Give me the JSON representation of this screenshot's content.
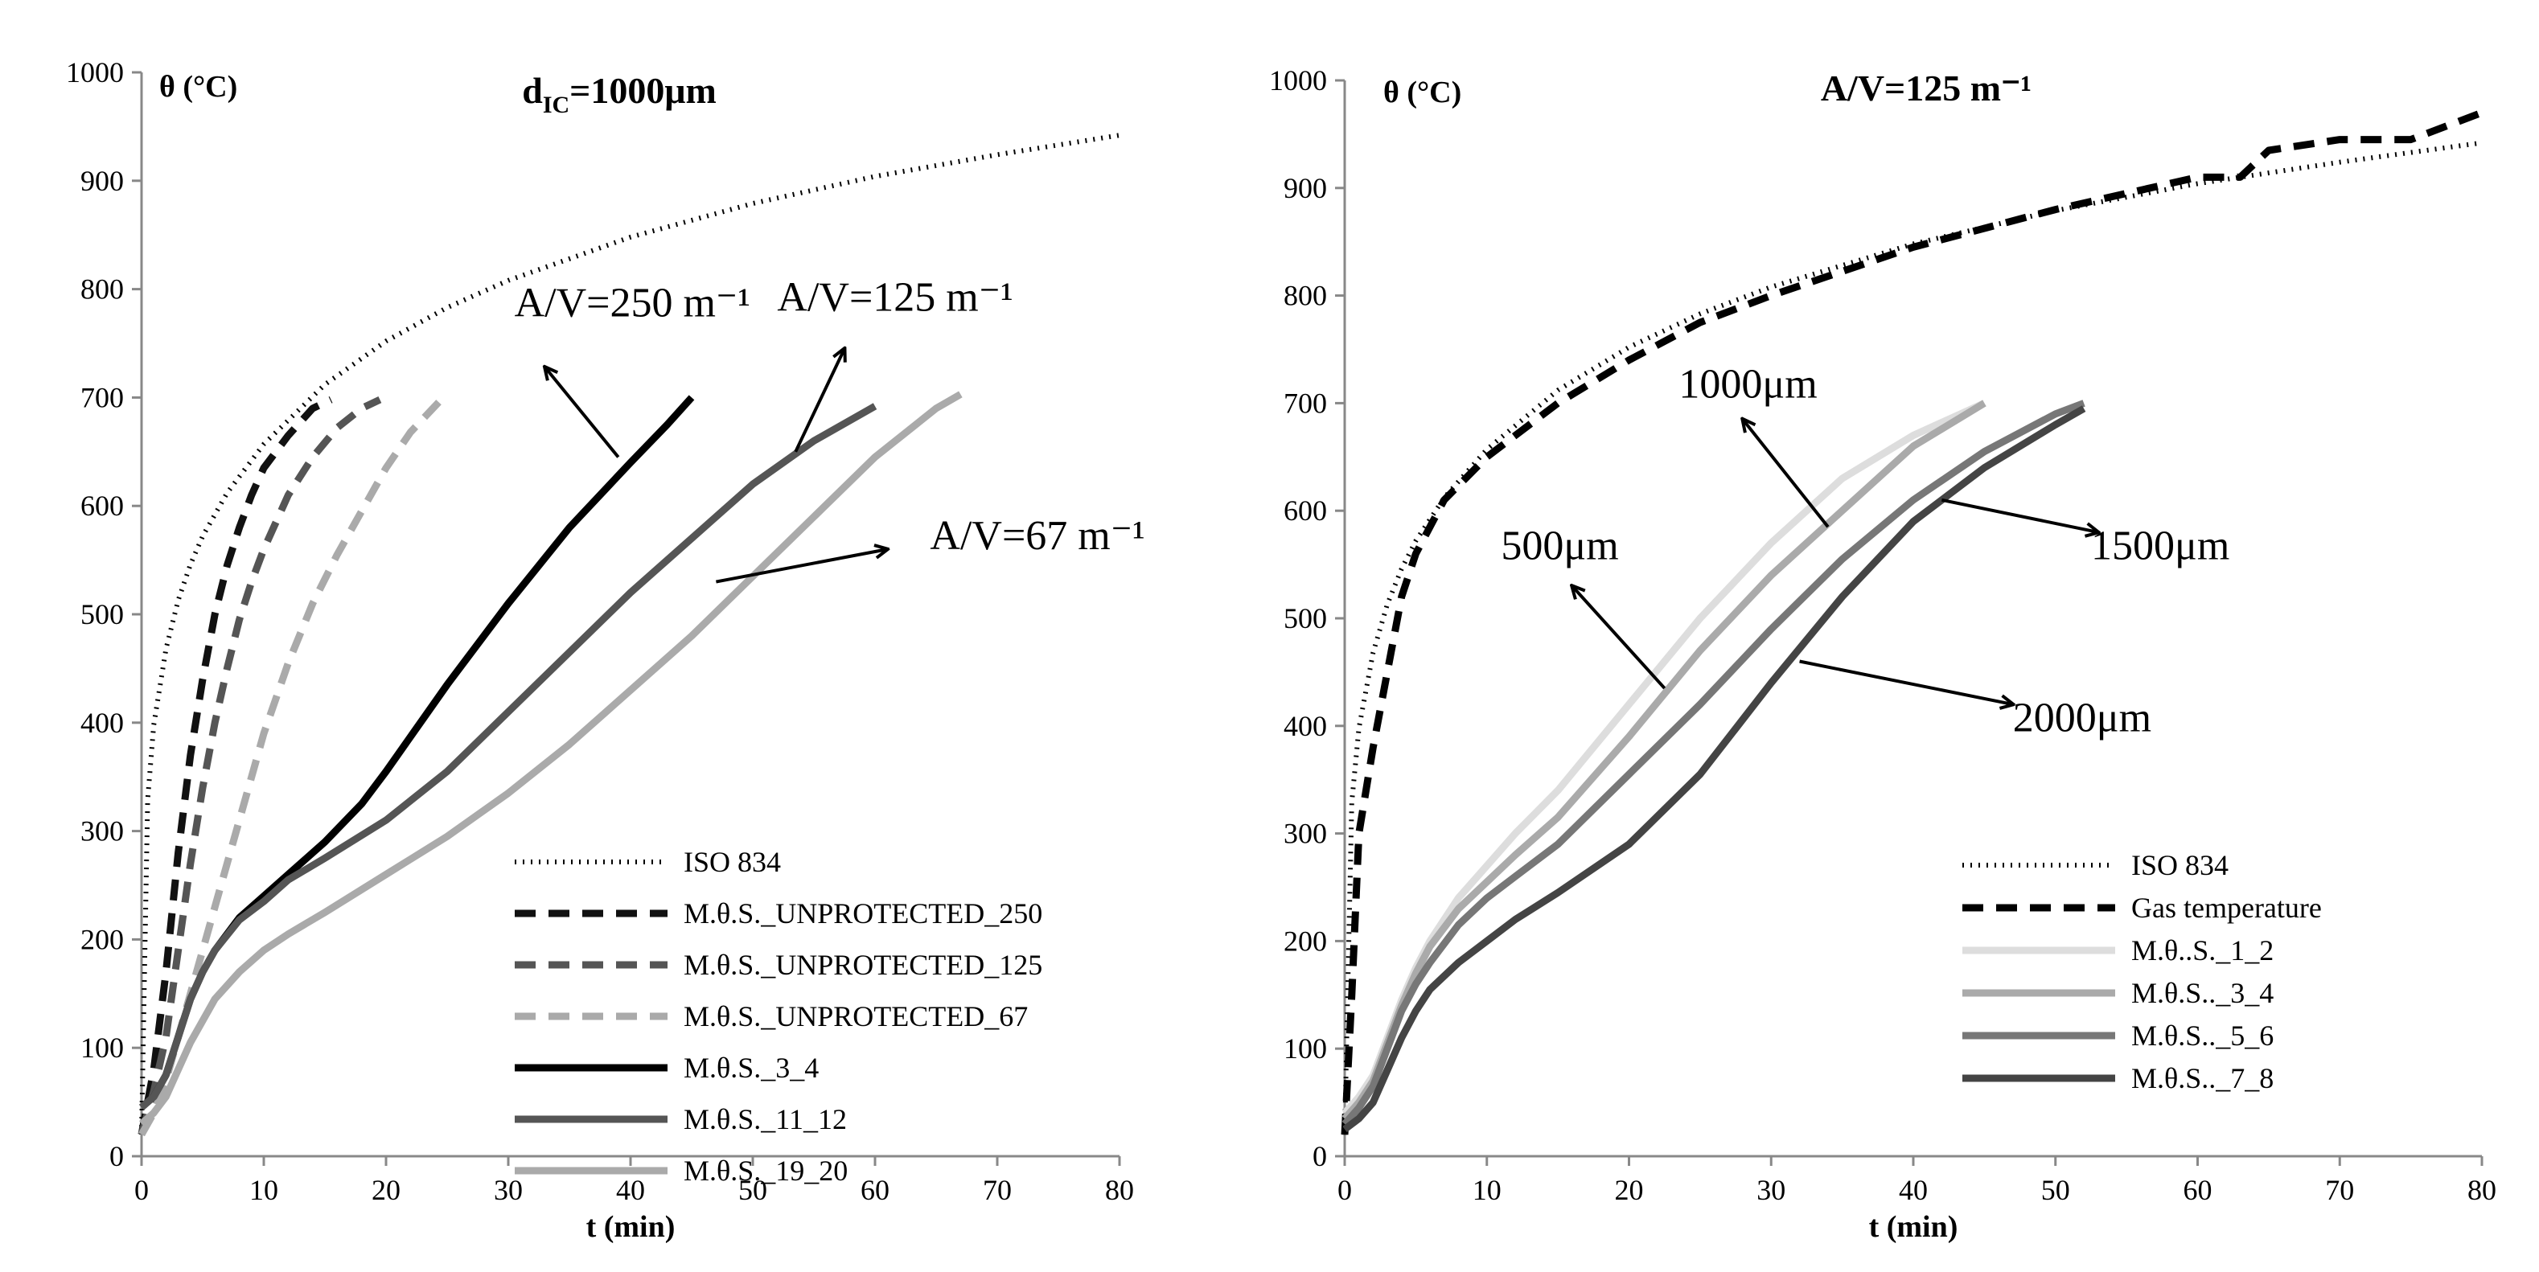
{
  "chart_data": [
    {
      "type": "line",
      "title": "d",
      "title_subscript": "IC",
      "title_suffix": "=1000μm",
      "xlabel": "t (min)",
      "ylabel": "θ (°C)",
      "xlim": [
        0,
        80
      ],
      "ylim": [
        0,
        1000
      ],
      "xticks": [
        0,
        10,
        20,
        30,
        40,
        50,
        60,
        70,
        80
      ],
      "yticks": [
        0,
        100,
        200,
        300,
        400,
        500,
        600,
        700,
        800,
        900,
        1000
      ],
      "legend_position": "bottom-right",
      "series": [
        {
          "name": "ISO 834",
          "color": "#000000",
          "style": "dotted",
          "x": [
            0,
            0.5,
            1,
            2,
            3,
            4,
            5,
            7,
            10,
            15,
            20,
            25,
            30,
            40,
            50,
            60,
            70,
            80
          ],
          "y": [
            20,
            329,
            398,
            468,
            513,
            546,
            572,
            612,
            657,
            712,
            752,
            783,
            808,
            848,
            879,
            904,
            924,
            942
          ]
        },
        {
          "name": "M.θ.S._UNPROTECTED_250",
          "color": "#111111",
          "style": "dashed",
          "x": [
            0,
            1,
            2,
            3,
            4,
            5,
            6,
            7,
            8,
            9,
            10,
            12,
            14,
            15.5
          ],
          "y": [
            20,
            80,
            170,
            280,
            370,
            440,
            500,
            545,
            580,
            610,
            635,
            665,
            690,
            698
          ]
        },
        {
          "name": "M.θ.S._UNPROTECTED_125",
          "color": "#555555",
          "style": "dashed",
          "x": [
            0,
            1,
            2,
            3,
            4,
            5,
            6,
            7,
            8,
            9,
            10,
            12,
            14,
            16,
            18,
            19.5
          ],
          "y": [
            20,
            60,
            110,
            190,
            270,
            340,
            400,
            450,
            495,
            530,
            560,
            610,
            645,
            672,
            690,
            698
          ]
        },
        {
          "name": "M.θ.S._UNPROTECTED_67",
          "color": "#aaaaaa",
          "style": "dashed",
          "x": [
            0,
            1,
            2,
            3,
            4,
            5,
            6,
            7,
            8,
            9,
            10,
            12,
            14,
            16,
            18,
            20,
            22,
            24.5
          ],
          "y": [
            20,
            40,
            70,
            110,
            150,
            190,
            230,
            270,
            310,
            350,
            390,
            455,
            510,
            555,
            595,
            635,
            668,
            698
          ]
        },
        {
          "name": "M.θ.S._3_4",
          "color": "#000000",
          "style": "solid",
          "x": [
            0,
            1,
            2,
            3,
            4,
            5,
            6,
            8,
            10,
            12,
            15,
            18,
            20,
            25,
            30,
            35,
            40,
            43,
            45
          ],
          "y": [
            45,
            55,
            75,
            110,
            145,
            170,
            190,
            220,
            240,
            260,
            290,
            325,
            355,
            435,
            510,
            580,
            640,
            675,
            700
          ]
        },
        {
          "name": "M.θ.S._11_12",
          "color": "#555555",
          "style": "solid",
          "x": [
            0,
            1,
            2,
            3,
            4,
            5,
            6,
            8,
            10,
            12,
            15,
            20,
            25,
            30,
            35,
            40,
            45,
            50,
            55,
            60
          ],
          "y": [
            45,
            55,
            75,
            110,
            145,
            170,
            190,
            218,
            235,
            255,
            275,
            310,
            355,
            410,
            465,
            520,
            570,
            620,
            660,
            692
          ]
        },
        {
          "name": "M.θ.S._19_20",
          "color": "#aaaaaa",
          "style": "solid",
          "x": [
            0,
            1,
            2,
            3,
            4,
            5,
            6,
            8,
            10,
            12,
            15,
            20,
            25,
            30,
            35,
            40,
            45,
            50,
            55,
            60,
            65,
            67
          ],
          "y": [
            30,
            40,
            55,
            80,
            105,
            125,
            145,
            170,
            190,
            205,
            225,
            260,
            295,
            335,
            380,
            430,
            480,
            535,
            590,
            645,
            690,
            703
          ]
        }
      ],
      "annotations": [
        {
          "text": "A/V=250 m⁻¹",
          "label_x": 30.5,
          "label_y": 775,
          "tail": [
            39,
            645
          ],
          "head": [
            33,
            728
          ]
        },
        {
          "text": "A/V=125 m⁻¹",
          "label_x": 52,
          "label_y": 780,
          "tail": [
            53.5,
            650
          ],
          "head": [
            57.5,
            745
          ]
        },
        {
          "text": "A/V=67 m⁻¹",
          "label_x": 64.5,
          "label_y": 560,
          "tail": [
            47,
            530
          ],
          "head": [
            61,
            560
          ]
        }
      ]
    },
    {
      "type": "line",
      "title": "A/V=125 m⁻¹",
      "xlabel": "t (min)",
      "ylabel": "θ (°C)",
      "xlim": [
        0,
        80
      ],
      "ylim": [
        0,
        1000
      ],
      "xticks": [
        0,
        10,
        20,
        30,
        40,
        50,
        60,
        70,
        80
      ],
      "yticks": [
        0,
        100,
        200,
        300,
        400,
        500,
        600,
        700,
        800,
        900,
        1000
      ],
      "legend_position": "bottom-right",
      "series": [
        {
          "name": "ISO 834",
          "color": "#000000",
          "style": "dotted",
          "x": [
            0,
            0.5,
            1,
            2,
            3,
            4,
            5,
            7,
            10,
            15,
            20,
            25,
            30,
            40,
            50,
            60,
            70,
            80
          ],
          "y": [
            20,
            329,
            398,
            468,
            513,
            546,
            572,
            612,
            657,
            712,
            752,
            783,
            808,
            848,
            879,
            904,
            924,
            942
          ]
        },
        {
          "name": "Gas temperature",
          "color": "#000000",
          "style": "dashed",
          "x": [
            0,
            0.5,
            1,
            2,
            3,
            4,
            5,
            7,
            10,
            15,
            20,
            25,
            30,
            40,
            50,
            60,
            63,
            65,
            70,
            75,
            80
          ],
          "y": [
            20,
            150,
            300,
            380,
            450,
            520,
            560,
            610,
            650,
            700,
            740,
            775,
            800,
            845,
            880,
            910,
            910,
            935,
            945,
            945,
            970
          ]
        },
        {
          "name": "M.θ..S._1_2",
          "color": "#dddddd",
          "style": "solid",
          "x": [
            0,
            1,
            2,
            3,
            4,
            5,
            6,
            8,
            10,
            12,
            15,
            20,
            25,
            30,
            35,
            40,
            45
          ],
          "y": [
            40,
            55,
            75,
            110,
            145,
            175,
            200,
            240,
            270,
            300,
            340,
            420,
            500,
            570,
            630,
            670,
            700
          ]
        },
        {
          "name": "M.θ.S.._3_4",
          "color": "#aaaaaa",
          "style": "solid",
          "x": [
            0,
            1,
            2,
            3,
            4,
            5,
            6,
            8,
            10,
            12,
            15,
            20,
            25,
            30,
            35,
            40,
            45
          ],
          "y": [
            35,
            50,
            70,
            105,
            140,
            170,
            195,
            230,
            255,
            280,
            315,
            390,
            470,
            540,
            600,
            660,
            700
          ]
        },
        {
          "name": "M.θ.S.._5_6",
          "color": "#777777",
          "style": "solid",
          "x": [
            0,
            1,
            2,
            3,
            4,
            5,
            6,
            8,
            10,
            12,
            15,
            20,
            25,
            30,
            35,
            40,
            45,
            50,
            52
          ],
          "y": [
            30,
            45,
            65,
            100,
            135,
            160,
            180,
            215,
            240,
            260,
            290,
            355,
            420,
            490,
            555,
            610,
            655,
            690,
            700
          ]
        },
        {
          "name": "M.θ.S.._7_8",
          "color": "#444444",
          "style": "solid",
          "x": [
            0,
            1,
            2,
            3,
            4,
            5,
            6,
            8,
            10,
            12,
            15,
            20,
            25,
            30,
            35,
            40,
            45,
            50,
            52
          ],
          "y": [
            25,
            35,
            50,
            80,
            110,
            135,
            155,
            180,
            200,
            220,
            245,
            290,
            355,
            440,
            520,
            590,
            640,
            680,
            695
          ]
        }
      ],
      "annotations": [
        {
          "text": "1000μm",
          "label_x": 23.5,
          "label_y": 705,
          "tail": [
            34,
            585
          ],
          "head": [
            28,
            685
          ]
        },
        {
          "text": "500μm",
          "label_x": 11,
          "label_y": 555,
          "tail": [
            22.5,
            435
          ],
          "head": [
            16,
            530
          ]
        },
        {
          "text": "1500μm",
          "label_x": 52.5,
          "label_y": 555,
          "tail": [
            42,
            610
          ],
          "head": [
            53,
            580
          ]
        },
        {
          "text": "2000μm",
          "label_x": 47,
          "label_y": 395,
          "tail": [
            32,
            460
          ],
          "head": [
            47,
            420
          ]
        }
      ]
    }
  ]
}
